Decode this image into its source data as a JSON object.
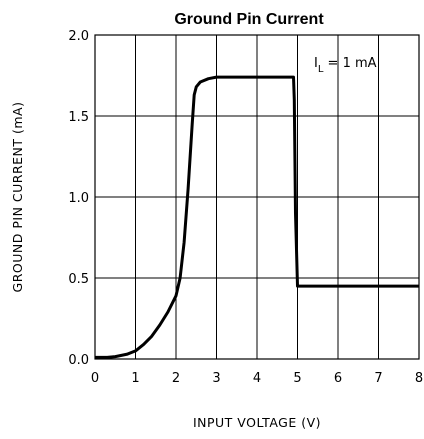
{
  "chart_data": {
    "type": "line",
    "title": "Ground Pin Current",
    "xlabel": "INPUT VOLTAGE (V)",
    "ylabel": "GROUND PIN CURRENT (mA)",
    "xlim": [
      0,
      8
    ],
    "ylim": [
      0,
      2.0
    ],
    "xticks": [
      "0",
      "1",
      "2",
      "3",
      "4",
      "5",
      "6",
      "7",
      "8"
    ],
    "yticks": [
      "0.0",
      "0.5",
      "1.0",
      "1.5",
      "2.0"
    ],
    "grid": true,
    "annotation": {
      "main": "I",
      "sub": "L",
      "rest": " = 1 mA"
    },
    "series": [
      {
        "x": [
          0,
          0.3,
          0.5,
          0.8,
          1.0,
          1.2,
          1.4,
          1.6,
          1.8,
          2.0,
          2.1,
          2.2,
          2.3,
          2.4,
          2.45,
          2.5,
          2.6,
          2.8,
          3.0,
          3.5,
          4.0,
          4.5,
          4.9,
          4.92,
          4.95,
          5.0,
          6.0,
          7.0,
          8.0
        ],
        "y": [
          0.01,
          0.01,
          0.015,
          0.03,
          0.05,
          0.09,
          0.14,
          0.21,
          0.29,
          0.39,
          0.5,
          0.72,
          1.05,
          1.45,
          1.63,
          1.68,
          1.71,
          1.73,
          1.74,
          1.74,
          1.74,
          1.74,
          1.74,
          1.6,
          0.9,
          0.45,
          0.45,
          0.45,
          0.45
        ]
      }
    ]
  }
}
